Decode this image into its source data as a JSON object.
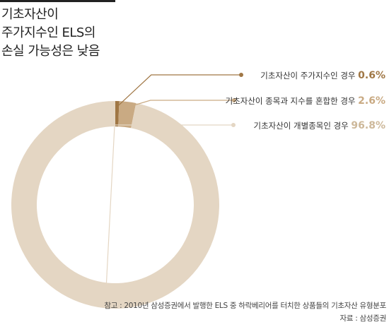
{
  "title_lines": [
    "기초자산이",
    "주가지수인 ELS의",
    "손실 가능성은 낮음"
  ],
  "chart_data": {
    "type": "pie",
    "style": "donut",
    "slices": [
      {
        "label": "기초자산이 주가지수인 경우",
        "value": 0.6,
        "display": "0.6%",
        "color": "#a07745",
        "label_color": "#a07745"
      },
      {
        "label": "기초자산이 종목과 지수를 혼합한 경우",
        "value": 2.6,
        "display": "2.6%",
        "color": "#c9aa83",
        "label_color": "#c9aa83"
      },
      {
        "label": "기초자산이 개별종목인 경우",
        "value": 96.8,
        "display": "96.8%",
        "color": "#e4d6c3",
        "label_color": "#cdb89a"
      }
    ]
  },
  "note_lines": [
    "참고 : 2010년 삼성증권에서 발행한 ELS 중 하락베리어를 터치한 상품들의 기초자산 유형분포",
    "자료 : 삼성증권"
  ]
}
